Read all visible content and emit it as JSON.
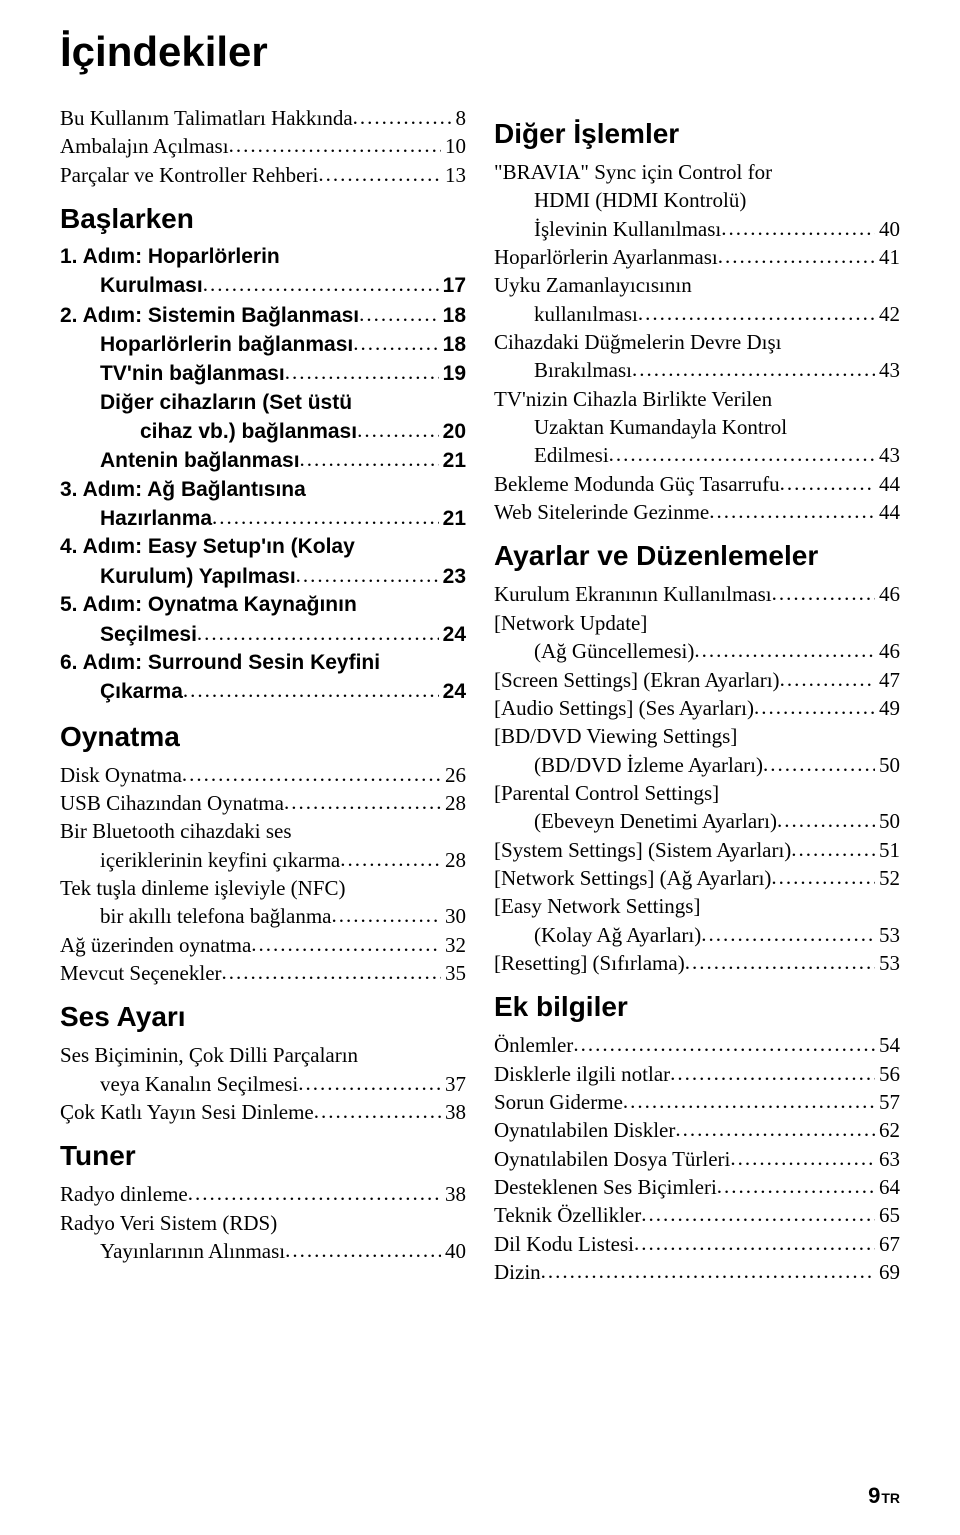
{
  "title": "İçindekiler",
  "footer": {
    "page": "9",
    "lang": "TR"
  },
  "columns": {
    "left": [
      {
        "kind": "entry",
        "style": "serif",
        "indent": 0,
        "lines": [
          "Bu Kullanım Talimatları Hakkında"
        ],
        "page": "8"
      },
      {
        "kind": "entry",
        "style": "serif",
        "indent": 0,
        "lines": [
          "Ambalajın Açılması"
        ],
        "page": "10"
      },
      {
        "kind": "entry",
        "style": "serif",
        "indent": 0,
        "lines": [
          "Parçalar ve Kontroller Rehberi"
        ],
        "page": "13"
      },
      {
        "kind": "heading",
        "text": "Başlarken"
      },
      {
        "kind": "entry",
        "style": "sans",
        "indent": 0,
        "lines": [
          "1. Adım: Hoparlörlerin",
          "Kurulması"
        ],
        "page": "17"
      },
      {
        "kind": "entry",
        "style": "sans",
        "indent": 0,
        "lines": [
          "2. Adım: Sistemin Bağlanması"
        ],
        "page": "18"
      },
      {
        "kind": "entry",
        "style": "sans",
        "indent": 1,
        "lines": [
          "Hoparlörlerin bağlanması"
        ],
        "page": "18"
      },
      {
        "kind": "entry",
        "style": "sans",
        "indent": 1,
        "lines": [
          "TV'nin bağlanması"
        ],
        "page": "19"
      },
      {
        "kind": "entry",
        "style": "sans",
        "indent": 1,
        "lines": [
          "Diğer cihazların (Set üstü",
          "cihaz vb.) bağlanması"
        ],
        "page": "20"
      },
      {
        "kind": "entry",
        "style": "sans",
        "indent": 1,
        "lines": [
          "Antenin bağlanması"
        ],
        "page": "21"
      },
      {
        "kind": "entry",
        "style": "sans",
        "indent": 0,
        "lines": [
          "3. Adım: Ağ Bağlantısına",
          "Hazırlanma"
        ],
        "page": "21"
      },
      {
        "kind": "entry",
        "style": "sans",
        "indent": 0,
        "lines": [
          "4. Adım: Easy Setup'ın (Kolay",
          "Kurulum) Yapılması"
        ],
        "page": "23"
      },
      {
        "kind": "entry",
        "style": "sans",
        "indent": 0,
        "lines": [
          "5. Adım: Oynatma Kaynağının",
          "Seçilmesi"
        ],
        "page": "24"
      },
      {
        "kind": "entry",
        "style": "sans",
        "indent": 0,
        "lines": [
          "6. Adım: Surround Sesin Keyfini",
          "Çıkarma"
        ],
        "page": "24"
      },
      {
        "kind": "heading",
        "text": "Oynatma"
      },
      {
        "kind": "entry",
        "style": "serif",
        "indent": 0,
        "lines": [
          "Disk Oynatma"
        ],
        "page": "26"
      },
      {
        "kind": "entry",
        "style": "serif",
        "indent": 0,
        "lines": [
          "USB Cihazından Oynatma"
        ],
        "page": "28"
      },
      {
        "kind": "entry",
        "style": "serif",
        "indent": 0,
        "lines": [
          "Bir Bluetooth cihazdaki ses",
          "içeriklerinin keyfini çıkarma"
        ],
        "page": "28"
      },
      {
        "kind": "entry",
        "style": "serif",
        "indent": 0,
        "lines": [
          "Tek tuşla dinleme işleviyle (NFC)",
          "bir akıllı telefona bağlanma"
        ],
        "page": "30"
      },
      {
        "kind": "entry",
        "style": "serif",
        "indent": 0,
        "lines": [
          "Ağ üzerinden oynatma"
        ],
        "page": "32"
      },
      {
        "kind": "entry",
        "style": "serif",
        "indent": 0,
        "lines": [
          "Mevcut Seçenekler"
        ],
        "page": "35"
      },
      {
        "kind": "heading",
        "text": "Ses Ayarı"
      },
      {
        "kind": "entry",
        "style": "serif",
        "indent": 0,
        "lines": [
          "Ses Biçiminin, Çok Dilli Parçaların",
          "veya Kanalın Seçilmesi"
        ],
        "page": "37"
      },
      {
        "kind": "entry",
        "style": "serif",
        "indent": 0,
        "lines": [
          "Çok Katlı Yayın Sesi Dinleme"
        ],
        "page": "38"
      },
      {
        "kind": "heading",
        "text": "Tuner"
      },
      {
        "kind": "entry",
        "style": "serif",
        "indent": 0,
        "lines": [
          "Radyo dinleme"
        ],
        "page": "38"
      },
      {
        "kind": "entry",
        "style": "serif",
        "indent": 0,
        "lines": [
          "Radyo Veri Sistem (RDS)",
          "Yayınlarının Alınması"
        ],
        "page": "40"
      }
    ],
    "right": [
      {
        "kind": "heading",
        "text": "Diğer İşlemler"
      },
      {
        "kind": "entry",
        "style": "serif",
        "indent": 0,
        "lines": [
          "\"BRAVIA\" Sync için Control for",
          "HDMI (HDMI Kontrolü)",
          "İşlevinin Kullanılması"
        ],
        "page": "40"
      },
      {
        "kind": "entry",
        "style": "serif",
        "indent": 0,
        "lines": [
          "Hoparlörlerin Ayarlanması"
        ],
        "page": "41"
      },
      {
        "kind": "entry",
        "style": "serif",
        "indent": 0,
        "lines": [
          "Uyku Zamanlayıcısının",
          "kullanılması"
        ],
        "page": "42"
      },
      {
        "kind": "entry",
        "style": "serif",
        "indent": 0,
        "lines": [
          "Cihazdaki Düğmelerin Devre Dışı",
          "Bırakılması"
        ],
        "page": "43"
      },
      {
        "kind": "entry",
        "style": "serif",
        "indent": 0,
        "lines": [
          "TV'nizin Cihazla Birlikte Verilen",
          "Uzaktan Kumandayla Kontrol",
          "Edilmesi"
        ],
        "page": "43"
      },
      {
        "kind": "entry",
        "style": "serif",
        "indent": 0,
        "lines": [
          "Bekleme Modunda Güç Tasarrufu"
        ],
        "page": "44"
      },
      {
        "kind": "entry",
        "style": "serif",
        "indent": 0,
        "lines": [
          "Web Sitelerinde Gezinme"
        ],
        "page": "44"
      },
      {
        "kind": "heading",
        "text": "Ayarlar ve Düzenlemeler"
      },
      {
        "kind": "entry",
        "style": "serif",
        "indent": 0,
        "lines": [
          "Kurulum Ekranının Kullanılması"
        ],
        "page": "46"
      },
      {
        "kind": "entry",
        "style": "serif",
        "indent": 0,
        "lines": [
          "[Network Update]",
          "(Ağ Güncellemesi)"
        ],
        "page": "46"
      },
      {
        "kind": "entry",
        "style": "serif",
        "indent": 0,
        "lines": [
          "[Screen Settings] (Ekran Ayarları)"
        ],
        "page": "47"
      },
      {
        "kind": "entry",
        "style": "serif",
        "indent": 0,
        "lines": [
          "[Audio Settings] (Ses Ayarları)"
        ],
        "page": "49"
      },
      {
        "kind": "entry",
        "style": "serif",
        "indent": 0,
        "lines": [
          "[BD/DVD Viewing Settings]",
          "(BD/DVD İzleme Ayarları)"
        ],
        "page": "50"
      },
      {
        "kind": "entry",
        "style": "serif",
        "indent": 0,
        "lines": [
          "[Parental Control Settings]",
          "(Ebeveyn Denetimi Ayarları)"
        ],
        "page": "50"
      },
      {
        "kind": "entry",
        "style": "serif",
        "indent": 0,
        "lines": [
          "[System Settings] (Sistem Ayarları)"
        ],
        "page": "51"
      },
      {
        "kind": "entry",
        "style": "serif",
        "indent": 0,
        "lines": [
          "[Network Settings] (Ağ Ayarları)"
        ],
        "page": "52"
      },
      {
        "kind": "entry",
        "style": "serif",
        "indent": 0,
        "lines": [
          "[Easy Network Settings]",
          "(Kolay Ağ Ayarları)"
        ],
        "page": "53"
      },
      {
        "kind": "entry",
        "style": "serif",
        "indent": 0,
        "lines": [
          "[Resetting] (Sıfırlama)"
        ],
        "page": "53"
      },
      {
        "kind": "heading",
        "text": "Ek bilgiler"
      },
      {
        "kind": "entry",
        "style": "serif",
        "indent": 0,
        "lines": [
          "Önlemler"
        ],
        "page": "54"
      },
      {
        "kind": "entry",
        "style": "serif",
        "indent": 0,
        "lines": [
          "Disklerle ilgili notlar"
        ],
        "page": "56"
      },
      {
        "kind": "entry",
        "style": "serif",
        "indent": 0,
        "lines": [
          "Sorun Giderme"
        ],
        "page": "57"
      },
      {
        "kind": "entry",
        "style": "serif",
        "indent": 0,
        "lines": [
          "Oynatılabilen Diskler"
        ],
        "page": "62"
      },
      {
        "kind": "entry",
        "style": "serif",
        "indent": 0,
        "lines": [
          "Oynatılabilen Dosya Türleri"
        ],
        "page": "63"
      },
      {
        "kind": "entry",
        "style": "serif",
        "indent": 0,
        "lines": [
          "Desteklenen Ses Biçimleri"
        ],
        "page": "64"
      },
      {
        "kind": "entry",
        "style": "serif",
        "indent": 0,
        "lines": [
          "Teknik Özellikler"
        ],
        "page": "65"
      },
      {
        "kind": "entry",
        "style": "serif",
        "indent": 0,
        "lines": [
          "Dil Kodu Listesi"
        ],
        "page": "67"
      },
      {
        "kind": "entry",
        "style": "serif",
        "indent": 0,
        "lines": [
          "Dizin"
        ],
        "page": "69"
      }
    ]
  }
}
